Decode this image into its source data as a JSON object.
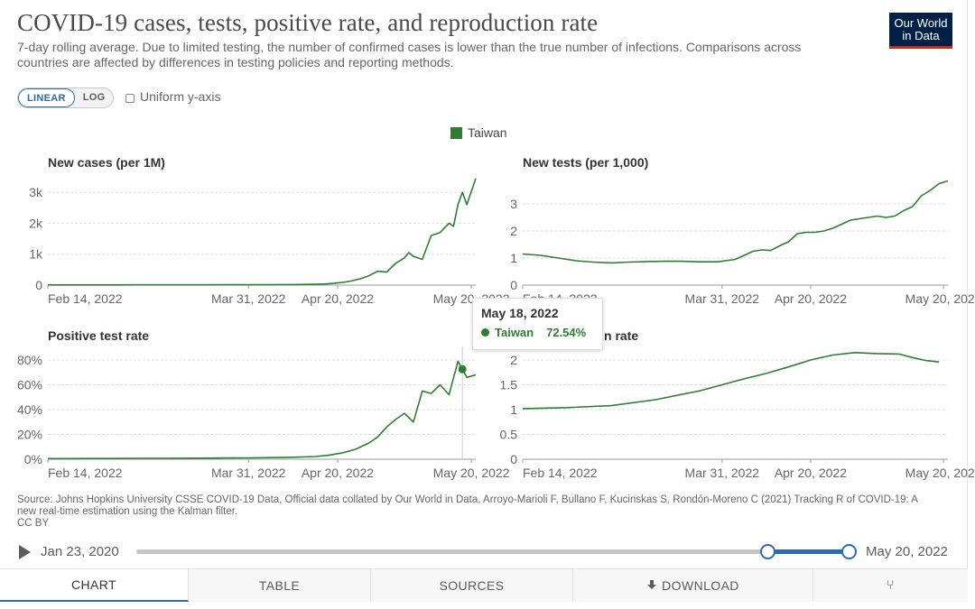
{
  "header": {
    "title": "COVID-19 cases, tests, positive rate, and reproduction rate",
    "subtitle": "7-day rolling average. Due to limited testing, the number of confirmed cases is lower than the true number of infections. Comparisons across countries are affected by differences in testing policies and reporting methods.",
    "logo": "Our World in Data"
  },
  "controls": {
    "linear_label": "LINEAR",
    "log_label": "LOG",
    "uniform_label": "Uniform y-axis"
  },
  "legend": {
    "label": "Taiwan",
    "color": "#2f7d32"
  },
  "tooltip": {
    "date": "May 18, 2022",
    "series": "Taiwan",
    "value": "72.54%"
  },
  "source": "Source: Johns Hopkins University CSSE COVID-19 Data, Official data collated by Our World in Data, Arroyo-Marioli F, Bullano F, Kucinskas S, Rondón-Moreno C (2021) Tracking R of COVID-19: A new real-time estimation using the Kalman filter.",
  "license": "CC BY",
  "timeline": {
    "start": "Jan 23, 2020",
    "end": "May 20, 2022",
    "range_start_fraction": 0.886,
    "range_end_fraction": 1.0
  },
  "tabs": [
    {
      "label": "CHART",
      "icon": ""
    },
    {
      "label": "TABLE",
      "icon": ""
    },
    {
      "label": "SOURCES",
      "icon": ""
    },
    {
      "label": "DOWNLOAD",
      "icon": "download-icon"
    },
    {
      "label": "",
      "icon": "share-icon"
    }
  ],
  "chart_data": [
    {
      "type": "line",
      "title": "New cases (per 1M)",
      "x_ticks": [
        "Feb 14, 2022",
        "Mar 31, 2022",
        "Apr 20, 2022",
        "May 20, 2022"
      ],
      "y_ticks": [
        "0",
        "1k",
        "2k",
        "3k"
      ],
      "ylim": [
        0,
        3500
      ],
      "x_range_days": [
        0,
        96
      ],
      "x_tick_days": [
        0,
        45,
        65,
        95
      ],
      "series": [
        {
          "x": [
            0,
            5,
            10,
            15,
            20,
            25,
            30,
            35,
            40,
            45,
            50,
            55,
            60,
            62,
            64,
            66,
            68,
            70,
            72,
            74,
            76,
            78,
            80,
            81,
            82,
            84,
            86,
            88,
            90,
            91,
            92,
            93,
            94,
            96
          ],
          "values": [
            5,
            6,
            6,
            7,
            8,
            8,
            9,
            10,
            11,
            13,
            15,
            18,
            25,
            35,
            55,
            85,
            130,
            200,
            300,
            450,
            420,
            700,
            880,
            1050,
            930,
            830,
            1600,
            1700,
            2000,
            1900,
            2600,
            3000,
            2600,
            3450
          ]
        }
      ]
    },
    {
      "type": "line",
      "title": "New tests (per 1,000)",
      "x_ticks": [
        "Feb 14, 2022",
        "Mar 31, 2022",
        "Apr 20, 2022",
        "May 20, 2022"
      ],
      "y_ticks": [
        "0",
        "1",
        "2",
        "3"
      ],
      "ylim": [
        0,
        4
      ],
      "x_range_days": [
        0,
        96
      ],
      "x_tick_days": [
        0,
        45,
        65,
        95
      ],
      "series": [
        {
          "x": [
            0,
            4,
            8,
            12,
            16,
            20,
            24,
            28,
            32,
            36,
            40,
            44,
            48,
            50,
            52,
            54,
            56,
            58,
            60,
            62,
            64,
            66,
            68,
            70,
            72,
            74,
            76,
            78,
            80,
            82,
            84,
            86,
            88,
            90,
            92,
            94,
            96
          ],
          "values": [
            1.15,
            1.1,
            1.0,
            0.9,
            0.85,
            0.82,
            0.85,
            0.87,
            0.88,
            0.88,
            0.86,
            0.86,
            0.95,
            1.1,
            1.25,
            1.3,
            1.28,
            1.45,
            1.6,
            1.9,
            1.95,
            1.95,
            2.0,
            2.1,
            2.25,
            2.4,
            2.45,
            2.5,
            2.55,
            2.5,
            2.55,
            2.75,
            2.9,
            3.3,
            3.5,
            3.75,
            3.85
          ]
        }
      ]
    },
    {
      "type": "line",
      "title": "Positive test rate",
      "x_ticks": [
        "Feb 14, 2022",
        "Mar 31, 2022",
        "Apr 20, 2022",
        "May 20, 2022"
      ],
      "y_ticks": [
        "0%",
        "20%",
        "40%",
        "60%",
        "80%"
      ],
      "ylim": [
        0,
        88
      ],
      "x_range_days": [
        0,
        96
      ],
      "x_tick_days": [
        0,
        45,
        65,
        95
      ],
      "series": [
        {
          "x": [
            0,
            5,
            10,
            15,
            20,
            25,
            30,
            35,
            40,
            45,
            50,
            55,
            60,
            63,
            66,
            69,
            72,
            74,
            76,
            78,
            80,
            82,
            84,
            86,
            88,
            90,
            92,
            94,
            96
          ],
          "values": [
            0.5,
            0.5,
            0.6,
            0.6,
            0.7,
            0.7,
            0.8,
            0.9,
            1.0,
            1.1,
            1.3,
            1.6,
            2.2,
            3.2,
            5,
            8,
            13,
            18,
            26,
            32,
            37,
            30,
            55,
            53,
            60,
            52,
            79,
            66,
            68
          ]
        }
      ],
      "highlight": {
        "x": 93,
        "value": 72.54
      }
    },
    {
      "type": "line",
      "title": "n rate",
      "x_ticks": [
        "Feb 14, 2022",
        "Mar 31, 2022",
        "Apr 20, 2022",
        "May 20, 2022"
      ],
      "y_ticks": [
        "0",
        "0.5",
        "1",
        "1.5",
        "2"
      ],
      "ylim": [
        0,
        2.2
      ],
      "x_range_days": [
        0,
        96
      ],
      "x_tick_days": [
        0,
        45,
        65,
        95
      ],
      "series": [
        {
          "x": [
            0,
            10,
            20,
            30,
            40,
            50,
            55,
            60,
            65,
            70,
            75,
            80,
            85,
            88,
            91,
            94
          ],
          "values": [
            1.02,
            1.04,
            1.08,
            1.2,
            1.38,
            1.62,
            1.73,
            1.86,
            2.0,
            2.1,
            2.15,
            2.13,
            2.12,
            2.05,
            1.99,
            1.96
          ]
        }
      ]
    }
  ]
}
